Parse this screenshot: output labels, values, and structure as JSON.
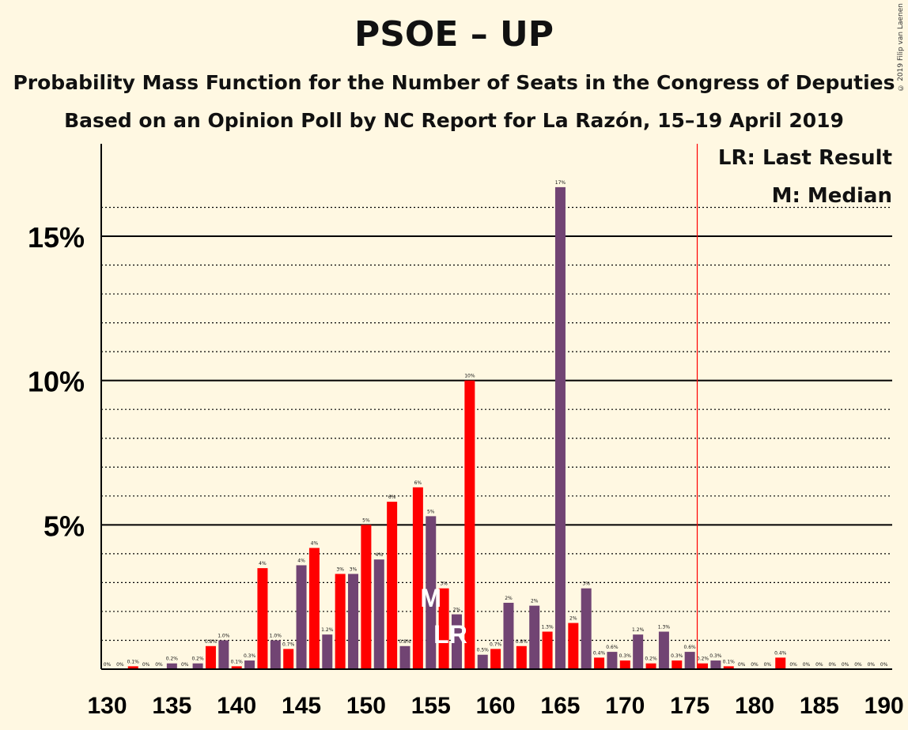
{
  "title": "PSOE – UP",
  "subtitle": "Probability Mass Function for the Number of Seats in the Congress of Deputies",
  "subtitle2": "Based on an Opinion Poll by NC Report for La Razón, 15–19 April 2019",
  "copyright": "© 2019 Filip van Laenen",
  "legend": {
    "lr": "LR: Last Result",
    "m": "M: Median"
  },
  "colors": {
    "purple": "#714473",
    "red": "#FF0000",
    "background": "#FFF8E2",
    "majority_line": "#FF0000"
  },
  "chart_data": {
    "type": "bar",
    "x": [
      130,
      131,
      132,
      133,
      134,
      135,
      136,
      137,
      138,
      139,
      140,
      141,
      142,
      143,
      144,
      145,
      146,
      147,
      148,
      149,
      150,
      151,
      152,
      153,
      154,
      155,
      156,
      157,
      158,
      159,
      160,
      161,
      162,
      163,
      164,
      165,
      166,
      167,
      168,
      169,
      170,
      171,
      172,
      173,
      174,
      175,
      176,
      177,
      178,
      179,
      180,
      181,
      182,
      183,
      184,
      185,
      186,
      187,
      188,
      189,
      190
    ],
    "values": [
      0.0,
      0.0,
      0.1,
      0.0,
      0.0,
      0.2,
      0.0,
      0.2,
      0.8,
      1.0,
      0.1,
      0.3,
      3.5,
      1.0,
      0.7,
      3.6,
      4.2,
      1.2,
      3.3,
      3.3,
      5.0,
      3.8,
      5.8,
      0.8,
      6.3,
      5.3,
      2.8,
      1.9,
      10.0,
      0.5,
      0.7,
      2.3,
      0.8,
      2.2,
      1.3,
      16.7,
      1.6,
      2.8,
      0.4,
      0.6,
      0.3,
      1.2,
      0.2,
      1.3,
      0.3,
      0.6,
      0.2,
      0.3,
      0.1,
      0.0,
      0.0,
      0.0,
      0.4,
      0.0,
      0.0,
      0.0,
      0.0,
      0.0,
      0.0,
      0.0,
      0.0
    ],
    "labels": [
      "0%",
      "0%",
      "0.1%",
      "0%",
      "0%",
      "0.2%",
      "0%",
      "0.2%",
      "0.8%",
      "1.0%",
      "0.1%",
      "0.3%",
      "4%",
      "1.0%",
      "0.7%",
      "4%",
      "4%",
      "1.2%",
      "3%",
      "3%",
      "5%",
      "4%",
      "6%",
      "0.8%",
      "6%",
      "5%",
      "3%",
      "2%",
      "10%",
      "0.5%",
      "0.7%",
      "2%",
      "0.8%",
      "2%",
      "1.3%",
      "17%",
      "2%",
      "3%",
      "0.4%",
      "0.6%",
      "0.3%",
      "1.2%",
      "0.2%",
      "1.3%",
      "0.3%",
      "0.6%",
      "0.2%",
      "0.3%",
      "0.1%",
      "0%",
      "0%",
      "0%",
      "0.4%",
      "0%",
      "0%",
      "0%",
      "0%",
      "0%",
      "0%",
      "0%",
      "0%"
    ],
    "xticks": [
      130,
      135,
      140,
      145,
      150,
      155,
      160,
      165,
      170,
      175,
      180,
      185,
      190
    ],
    "yticks": [
      5,
      10,
      15
    ],
    "ytick_labels": [
      "5%",
      "10%",
      "15%"
    ],
    "ylim": [
      0,
      18
    ],
    "median": 155,
    "median_label": "M",
    "last_result": 157,
    "last_result_label": "LR",
    "majority": 176
  }
}
